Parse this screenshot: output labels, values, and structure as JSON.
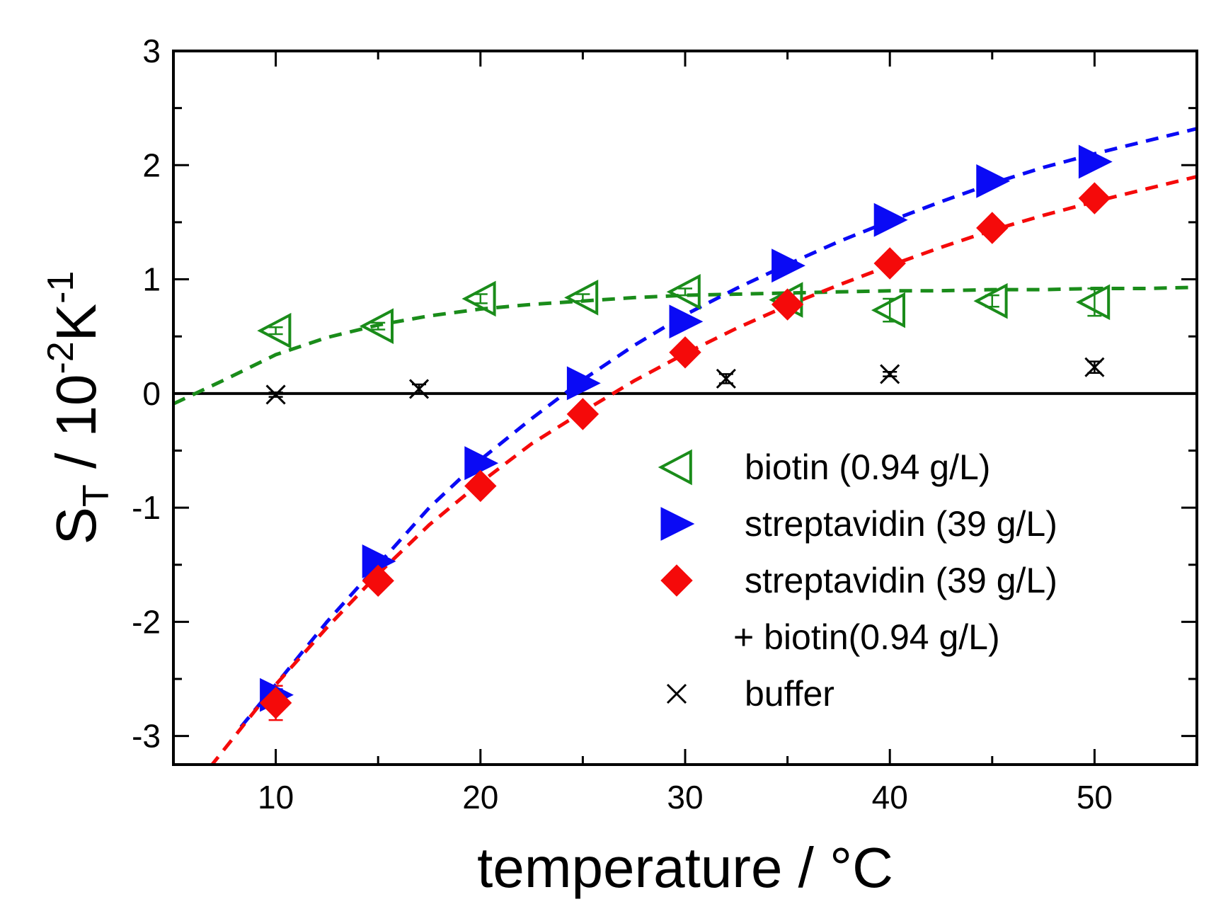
{
  "chart_data": {
    "type": "scatter",
    "title": "",
    "xlabel": "temperature / °C",
    "ylabel": {
      "main": "S",
      "sub": "T",
      "rest1": " / 10",
      "exp1": "-2",
      "rest2": "K",
      "exp2": "-1"
    },
    "xlim": [
      5,
      55
    ],
    "ylim": [
      -3.25,
      3
    ],
    "x_ticks": [
      10,
      20,
      30,
      40,
      50
    ],
    "x_tick_labels": [
      "10",
      "20",
      "30",
      "40",
      "50"
    ],
    "y_ticks": [
      -3,
      -2,
      -1,
      0,
      1,
      2,
      3
    ],
    "y_tick_labels": [
      "-3",
      "-2",
      "-1",
      "0",
      "1",
      "2",
      "3"
    ],
    "zero_line": true,
    "legend_position": "lower-right",
    "series": [
      {
        "name": "biotin (0.94 g/L)",
        "color": "#1a8c1a",
        "marker": "triangle-left-open",
        "x": [
          10,
          15,
          20,
          25,
          30,
          35,
          40,
          45,
          50
        ],
        "y": [
          0.55,
          0.59,
          0.83,
          0.84,
          0.89,
          0.82,
          0.73,
          0.81,
          0.8
        ],
        "err": [
          0.03,
          0.03,
          0.04,
          0.03,
          0.03,
          0.04,
          0.1,
          0.05,
          0.12
        ],
        "fit": {
          "x": [
            5,
            7.5,
            10,
            12.5,
            15,
            17.5,
            20,
            22.5,
            25,
            27.5,
            30,
            32.5,
            35,
            37.5,
            40,
            42.5,
            45,
            47.5,
            50,
            52.5,
            55
          ],
          "y": [
            -0.09,
            0.12,
            0.34,
            0.49,
            0.6,
            0.68,
            0.74,
            0.78,
            0.81,
            0.84,
            0.86,
            0.87,
            0.88,
            0.89,
            0.9,
            0.9,
            0.91,
            0.91,
            0.92,
            0.92,
            0.93
          ]
        }
      },
      {
        "name": "streptavidin (39 g/L)",
        "color": "#0a0af5",
        "marker": "triangle-right-filled",
        "x": [
          10,
          15,
          20,
          25,
          30,
          35,
          40,
          45,
          50
        ],
        "y": [
          -2.64,
          -1.47,
          -0.61,
          0.09,
          0.63,
          1.12,
          1.52,
          1.86,
          2.03
        ],
        "err": [
          0.05,
          0.04,
          0.04,
          0.04,
          0.03,
          0.03,
          0.04,
          0.03,
          0.04
        ],
        "fit": {
          "x": [
            8.3,
            10,
            12.5,
            15,
            17.5,
            20,
            22.5,
            25,
            27.5,
            30,
            32.5,
            35,
            37.5,
            40,
            42.5,
            45,
            47.5,
            50,
            52.5,
            55
          ],
          "y": [
            -2.92,
            -2.55,
            -2.0,
            -1.5,
            -1.0,
            -0.58,
            -0.22,
            0.12,
            0.42,
            0.69,
            0.92,
            1.13,
            1.33,
            1.51,
            1.68,
            1.84,
            1.98,
            2.1,
            2.21,
            2.32
          ]
        }
      },
      {
        "name": "streptavidin (39 g/L)",
        "name_line2": "+ biotin(0.94 g/L)",
        "color": "#f50a0a",
        "marker": "diamond-filled",
        "x": [
          10,
          15,
          20,
          25,
          30,
          35,
          40,
          45,
          50
        ],
        "y": [
          -2.71,
          -1.64,
          -0.81,
          -0.18,
          0.36,
          0.78,
          1.14,
          1.45,
          1.71
        ],
        "err": [
          0.15,
          0.05,
          0.05,
          0.04,
          0.04,
          0.04,
          0.05,
          0.04,
          0.04
        ],
        "fit": {
          "x": [
            6.8,
            8,
            10,
            12.5,
            15,
            17.5,
            20,
            22.5,
            25,
            27.5,
            30,
            32.5,
            35,
            37.5,
            40,
            42.5,
            45,
            47.5,
            50,
            52.5,
            55
          ],
          "y": [
            -3.27,
            -3.0,
            -2.55,
            -2.05,
            -1.58,
            -1.15,
            -0.78,
            -0.44,
            -0.16,
            0.11,
            0.35,
            0.57,
            0.77,
            0.95,
            1.12,
            1.28,
            1.43,
            1.56,
            1.68,
            1.79,
            1.9
          ]
        }
      },
      {
        "name": "buffer",
        "color": "#000000",
        "marker": "x",
        "x": [
          10,
          17,
          32,
          40,
          50
        ],
        "y": [
          -0.01,
          0.04,
          0.13,
          0.17,
          0.23
        ],
        "err": [
          0.02,
          0.04,
          0.04,
          0.02,
          0.05
        ]
      }
    ]
  }
}
